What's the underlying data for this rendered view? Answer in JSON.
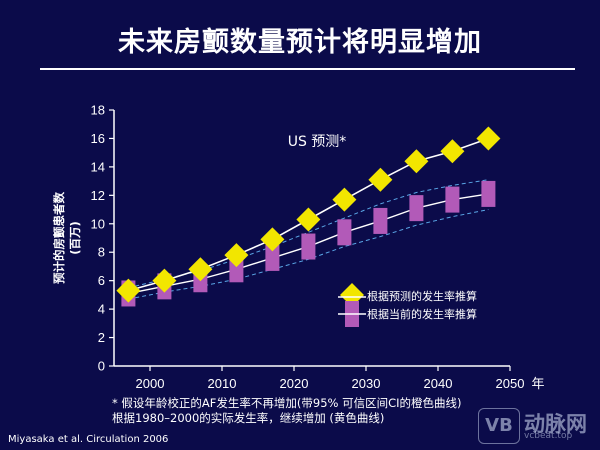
{
  "slide": {
    "title": "未来房颤数量预计将明显增加",
    "footnote_line1": "* 假设年龄校正的AF发生率不再增加(带95% 可信区间CI的橙色曲线)",
    "footnote_line2": "根据1980–2000的实际发生率，继续增加 (黄色曲线)",
    "citation": "Miyasaka et al. Circulation 2006",
    "watermark_text": "动脉网",
    "watermark_url": "vcbeat.top",
    "watermark_logo": "VB"
  },
  "chart_data": {
    "type": "line",
    "title": "US 预测*",
    "ylabel_line1": "预计的房颤患者数",
    "ylabel_line2": "(百万)",
    "xlabel": "年",
    "xlim": [
      1995,
      2050
    ],
    "ylim": [
      0,
      18
    ],
    "x_ticks": [
      2000,
      2010,
      2020,
      2030,
      2040,
      2050
    ],
    "y_ticks": [
      0,
      2,
      4,
      6,
      8,
      10,
      12,
      14,
      16,
      18
    ],
    "grid": false,
    "legend_position": "center-right",
    "x": [
      1997,
      2002,
      2007,
      2012,
      2017,
      2022,
      2027,
      2032,
      2037,
      2042,
      2047
    ],
    "series": [
      {
        "name": "根据预测的发生率推算",
        "color": "#f2e600",
        "marker": "diamond",
        "values": [
          5.3,
          6.0,
          6.8,
          7.8,
          8.9,
          10.3,
          11.7,
          13.1,
          14.4,
          15.1,
          16.0
        ]
      },
      {
        "name": "根据当前的发生率推算",
        "color": "#b25ab8",
        "marker": "rectangle",
        "values": [
          5.1,
          5.6,
          6.1,
          6.8,
          7.6,
          8.4,
          9.4,
          10.2,
          11.1,
          11.7,
          12.1
        ],
        "ci_upper": [
          5.5,
          6.1,
          6.7,
          7.5,
          8.4,
          9.4,
          10.4,
          11.4,
          12.2,
          12.7,
          13.1
        ],
        "ci_lower": [
          4.7,
          5.2,
          5.6,
          6.1,
          6.8,
          7.5,
          8.4,
          9.1,
          9.9,
          10.5,
          11.0
        ]
      }
    ]
  }
}
